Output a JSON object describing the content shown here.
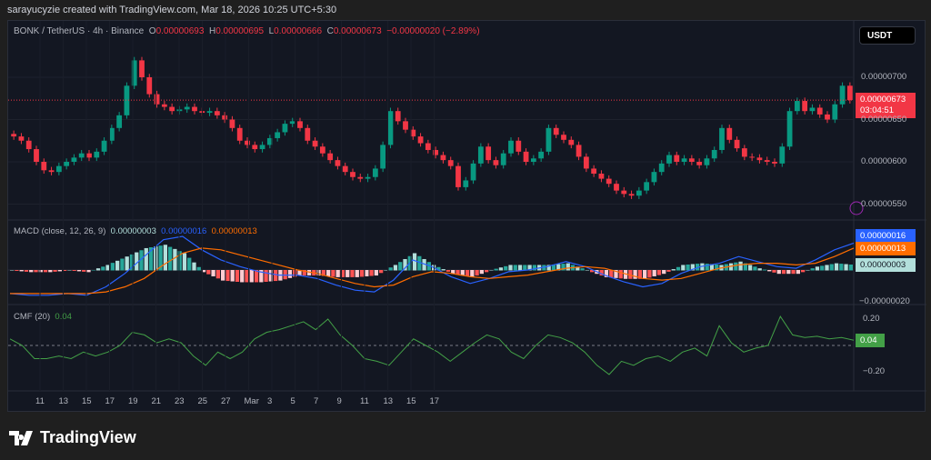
{
  "credit": "sarayucyzie created with TradingView.com, Mar 18, 2026 10:25 UTC+5:30",
  "symbol": "BONK / TetherUS · 4h · Binance",
  "ohlc": {
    "o_label": "O",
    "o": "0.00000693",
    "h_label": "H",
    "h": "0.00000695",
    "l_label": "L",
    "l": "0.00000666",
    "c_label": "C",
    "c": "0.00000673",
    "change": "−0.00000020 (−2.89%)"
  },
  "currency_button": "USDT",
  "last_price": "0.00000673",
  "countdown": "03:04:51",
  "colors": {
    "up": "#089981",
    "down": "#f23645",
    "macd": "#2962ff",
    "signal": "#ff6d00",
    "cmf": "#43a047",
    "bg": "#131722"
  },
  "icons": [
    "lightning-icon",
    "tradingview-logo-icon"
  ],
  "macd": {
    "label": "MACD (close, 12, 26, 9)",
    "hist": "0.00000003",
    "macd": "0.00000016",
    "signal": "0.00000013"
  },
  "cmf": {
    "label": "CMF (20)",
    "value": "0.04"
  },
  "logo": "TradingView",
  "chart_data": [
    {
      "type": "candlestick",
      "ylim": [
        540,
        730
      ],
      "unit": "1e-8 USDT",
      "y_ticks": [
        "0.00000700",
        "0.00000650",
        "0.00000600",
        "0.00000550"
      ],
      "y_tick_values": [
        700,
        650,
        600,
        550
      ],
      "x_ticks": [
        "11",
        "13",
        "15",
        "17",
        "19",
        "21",
        "23",
        "25",
        "27",
        "Mar",
        "3",
        "5",
        "7",
        "9",
        "11",
        "13",
        "15",
        "17"
      ],
      "close": [
        630,
        625,
        615,
        600,
        590,
        588,
        595,
        600,
        605,
        610,
        605,
        612,
        625,
        640,
        655,
        690,
        720,
        700,
        680,
        668,
        665,
        660,
        662,
        665,
        660,
        658,
        660,
        655,
        650,
        640,
        625,
        620,
        615,
        620,
        628,
        635,
        645,
        648,
        640,
        625,
        618,
        610,
        602,
        595,
        588,
        582,
        580,
        582,
        592,
        620,
        660,
        648,
        638,
        630,
        622,
        614,
        608,
        602,
        595,
        570,
        578,
        598,
        618,
        602,
        596,
        610,
        625,
        612,
        600,
        604,
        612,
        640,
        632,
        626,
        620,
        606,
        592,
        586,
        580,
        574,
        566,
        562,
        560,
        566,
        576,
        588,
        598,
        608,
        600,
        604,
        600,
        596,
        604,
        614,
        640,
        626,
        616,
        606,
        605,
        602,
        600,
        598,
        618,
        660,
        672,
        660,
        664,
        656,
        650,
        668,
        690,
        673
      ]
    },
    {
      "type": "line",
      "name": "MACD",
      "ylim": [
        -22,
        24
      ],
      "macd": [
        -14,
        -15,
        -15,
        -14,
        -15,
        -10,
        -2,
        8,
        18,
        20,
        12,
        6,
        2,
        -1,
        -3,
        -3,
        -5,
        -9,
        -12,
        -13,
        -6,
        6,
        2,
        -4,
        -8,
        -5,
        -1,
        0,
        2,
        5,
        2,
        -3,
        -7,
        -10,
        -8,
        -2,
        2,
        4,
        8,
        5,
        2,
        1,
        6,
        12,
        16
      ],
      "signal": [
        -14,
        -14,
        -14,
        -14,
        -14,
        -13,
        -10,
        -5,
        3,
        10,
        13,
        12,
        9,
        6,
        3,
        0,
        -2,
        -5,
        -8,
        -10,
        -9,
        -4,
        -1,
        -2,
        -4,
        -5,
        -4,
        -3,
        -1,
        1,
        2,
        1,
        -2,
        -5,
        -6,
        -5,
        -2,
        1,
        3,
        4,
        4,
        3,
        4,
        8,
        13
      ],
      "y_ticks": [
        "−0.00000020"
      ]
    },
    {
      "type": "line",
      "name": "CMF",
      "ylim": [
        -0.3,
        0.3
      ],
      "y_ticks": [
        "0.20",
        "−0.20"
      ],
      "y_tick_values": [
        0.2,
        -0.2
      ],
      "values": [
        0.05,
        0.0,
        -0.1,
        -0.1,
        -0.08,
        -0.1,
        -0.05,
        -0.08,
        -0.05,
        0.0,
        0.1,
        0.08,
        0.02,
        0.05,
        0.02,
        -0.08,
        -0.15,
        -0.05,
        -0.1,
        -0.05,
        0.05,
        0.1,
        0.12,
        0.15,
        0.18,
        0.12,
        0.2,
        0.08,
        0.0,
        -0.1,
        -0.12,
        -0.15,
        -0.05,
        0.05,
        0.0,
        -0.05,
        -0.12,
        -0.05,
        0.02,
        0.08,
        0.05,
        -0.05,
        -0.1,
        0.0,
        0.08,
        0.06,
        0.02,
        -0.05,
        -0.15,
        -0.22,
        -0.12,
        -0.15,
        -0.1,
        -0.08,
        -0.12,
        -0.05,
        -0.02,
        -0.08,
        0.15,
        0.02,
        -0.05,
        -0.02,
        0.0,
        0.22,
        0.08,
        0.06,
        0.07,
        0.05,
        0.06,
        0.04
      ]
    }
  ]
}
